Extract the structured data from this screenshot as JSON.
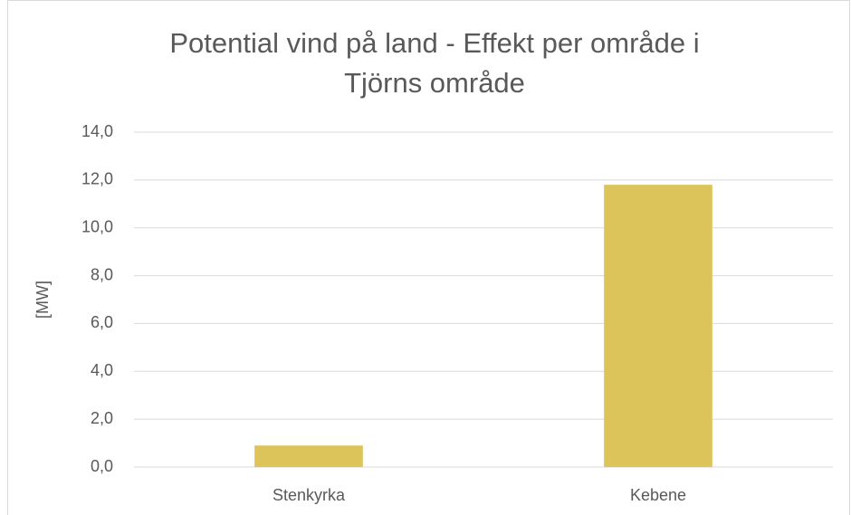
{
  "chart_data": {
    "type": "bar",
    "title": "Potential vind på land - Effekt per område i Tjörns område",
    "y_label": "[MW]",
    "categories": [
      "Stenkyrka",
      "Kebene"
    ],
    "values": [
      0.9,
      11.8
    ],
    "color": "#dcc45b",
    "ylim": [
      0,
      14
    ],
    "yticks": [
      {
        "value": 0,
        "label": "0,0"
      },
      {
        "value": 2,
        "label": "2,0"
      },
      {
        "value": 4,
        "label": "4,0"
      },
      {
        "value": 6,
        "label": "6,0"
      },
      {
        "value": 8,
        "label": "8,0"
      },
      {
        "value": 10,
        "label": "10,0"
      },
      {
        "value": 12,
        "label": "12,0"
      },
      {
        "value": 14,
        "label": "14,0"
      }
    ],
    "grid": true
  }
}
